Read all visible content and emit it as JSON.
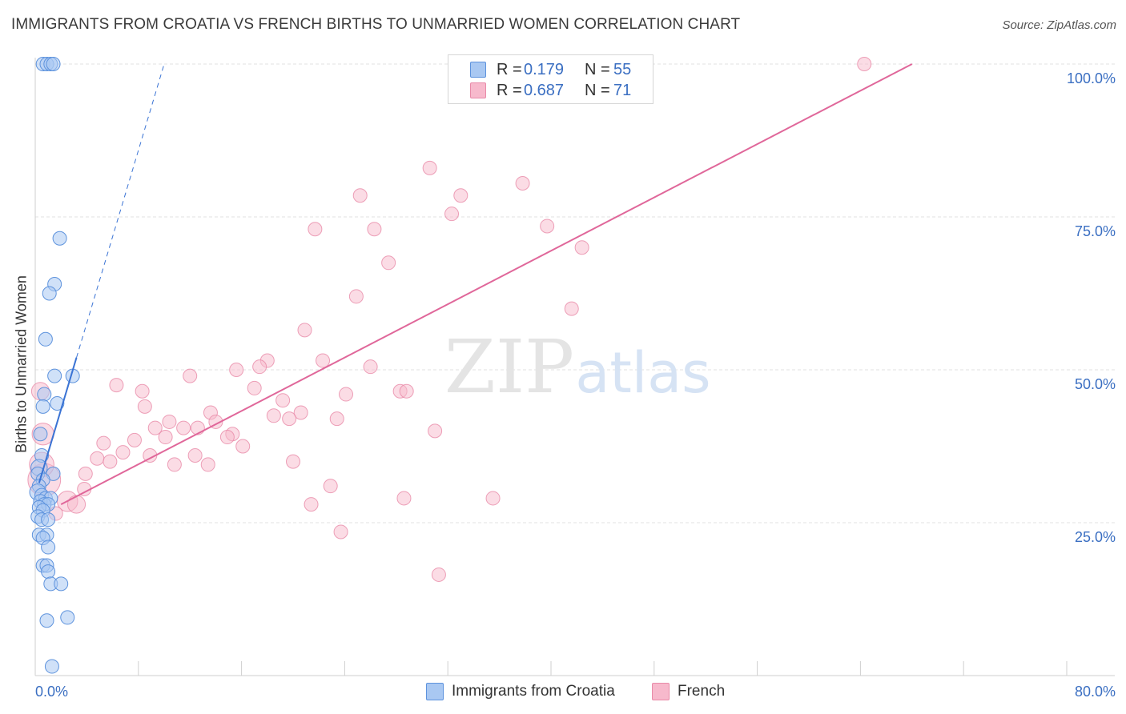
{
  "header": {
    "title": "IMMIGRANTS FROM CROATIA VS FRENCH BIRTHS TO UNMARRIED WOMEN CORRELATION CHART",
    "source": "Source: ZipAtlas.com"
  },
  "watermark": {
    "zip": "ZIP",
    "atlas": "atlas"
  },
  "legend": {
    "r_label": "R =",
    "n_label": "N =",
    "series": [
      {
        "name": "Immigrants from Croatia",
        "r": "0.179",
        "n": "55"
      },
      {
        "name": "French",
        "r": "0.687",
        "n": "71"
      }
    ]
  },
  "chart_data": {
    "type": "scatter",
    "title": "IMMIGRANTS FROM CROATIA VS FRENCH BIRTHS TO UNMARRIED WOMEN CORRELATION CHART",
    "xlabel": "",
    "ylabel": "Births to Unmarried Women",
    "xlim": [
      0,
      80
    ],
    "ylim": [
      0,
      100
    ],
    "x_tick_labels": [
      "0.0%",
      "80.0%"
    ],
    "y_tick_labels": [
      "25.0%",
      "50.0%",
      "75.0%",
      "100.0%"
    ],
    "y_ticks": [
      25,
      50,
      75,
      100
    ],
    "grid": true,
    "colors": {
      "croatia_fill": "#a9c8f2",
      "croatia_stroke": "#5e93dd",
      "croatia_line": "#3a73d4",
      "french_fill": "#f7b9cc",
      "french_stroke": "#e88aa8",
      "french_line": "#e0679a",
      "accent_text": "#3b6fc2"
    },
    "series": [
      {
        "name": "Immigrants from Croatia",
        "trend": {
          "x": [
            0.3,
            3.2
          ],
          "y": [
            31.5,
            52.0
          ],
          "dashed_to": [
            10.0,
            100.0
          ]
        },
        "points": [
          {
            "x": 0.6,
            "y": 100,
            "s": 1
          },
          {
            "x": 0.9,
            "y": 100,
            "s": 1
          },
          {
            "x": 1.2,
            "y": 100,
            "s": 1
          },
          {
            "x": 1.4,
            "y": 100,
            "s": 1
          },
          {
            "x": 1.9,
            "y": 71.5,
            "s": 1
          },
          {
            "x": 1.5,
            "y": 64.0,
            "s": 1
          },
          {
            "x": 1.1,
            "y": 62.5,
            "s": 1
          },
          {
            "x": 0.8,
            "y": 55.0,
            "s": 1
          },
          {
            "x": 1.5,
            "y": 49.0,
            "s": 1
          },
          {
            "x": 2.9,
            "y": 49.0,
            "s": 1
          },
          {
            "x": 0.7,
            "y": 46.0,
            "s": 1
          },
          {
            "x": 0.6,
            "y": 44.0,
            "s": 1
          },
          {
            "x": 1.7,
            "y": 44.5,
            "s": 1
          },
          {
            "x": 0.4,
            "y": 39.5,
            "s": 1
          },
          {
            "x": 0.5,
            "y": 36.0,
            "s": 1
          },
          {
            "x": 0.3,
            "y": 34.0,
            "s": 1.2
          },
          {
            "x": 0.2,
            "y": 33.0,
            "s": 1
          },
          {
            "x": 1.4,
            "y": 33.0,
            "s": 1
          },
          {
            "x": 0.6,
            "y": 32.0,
            "s": 1
          },
          {
            "x": 0.3,
            "y": 31.0,
            "s": 1
          },
          {
            "x": 0.2,
            "y": 30.0,
            "s": 1.2
          },
          {
            "x": 0.5,
            "y": 29.5,
            "s": 1
          },
          {
            "x": 0.8,
            "y": 29.0,
            "s": 1
          },
          {
            "x": 1.2,
            "y": 29.0,
            "s": 1
          },
          {
            "x": 0.4,
            "y": 28.5,
            "s": 1
          },
          {
            "x": 0.7,
            "y": 28.0,
            "s": 1
          },
          {
            "x": 1.0,
            "y": 28.0,
            "s": 1
          },
          {
            "x": 0.3,
            "y": 27.5,
            "s": 1
          },
          {
            "x": 0.6,
            "y": 27.0,
            "s": 1
          },
          {
            "x": 0.2,
            "y": 26.0,
            "s": 1
          },
          {
            "x": 0.5,
            "y": 25.5,
            "s": 1
          },
          {
            "x": 1.0,
            "y": 25.5,
            "s": 1
          },
          {
            "x": 0.3,
            "y": 23.0,
            "s": 1
          },
          {
            "x": 0.9,
            "y": 23.0,
            "s": 1
          },
          {
            "x": 0.6,
            "y": 22.5,
            "s": 1
          },
          {
            "x": 1.0,
            "y": 21.0,
            "s": 1
          },
          {
            "x": 0.6,
            "y": 18.0,
            "s": 1
          },
          {
            "x": 0.9,
            "y": 18.0,
            "s": 1
          },
          {
            "x": 1.0,
            "y": 17.0,
            "s": 1
          },
          {
            "x": 1.2,
            "y": 15.0,
            "s": 1
          },
          {
            "x": 2.0,
            "y": 15.0,
            "s": 1
          },
          {
            "x": 0.9,
            "y": 9.0,
            "s": 1
          },
          {
            "x": 2.5,
            "y": 9.5,
            "s": 1
          },
          {
            "x": 1.3,
            "y": 1.5,
            "s": 1
          }
        ]
      },
      {
        "name": "French",
        "trend": {
          "x": [
            2.0,
            68.0
          ],
          "y": [
            28.0,
            100.0
          ]
        },
        "points": [
          {
            "x": 64.3,
            "y": 100,
            "s": 1
          },
          {
            "x": 30.6,
            "y": 83.0,
            "s": 1
          },
          {
            "x": 37.8,
            "y": 80.5,
            "s": 1
          },
          {
            "x": 25.2,
            "y": 78.5,
            "s": 1
          },
          {
            "x": 33.0,
            "y": 78.5,
            "s": 1
          },
          {
            "x": 32.3,
            "y": 75.5,
            "s": 1
          },
          {
            "x": 21.7,
            "y": 73.0,
            "s": 1
          },
          {
            "x": 26.3,
            "y": 73.0,
            "s": 1
          },
          {
            "x": 39.7,
            "y": 73.5,
            "s": 1
          },
          {
            "x": 42.4,
            "y": 70.0,
            "s": 1
          },
          {
            "x": 27.4,
            "y": 67.5,
            "s": 1
          },
          {
            "x": 41.6,
            "y": 60.0,
            "s": 1
          },
          {
            "x": 24.9,
            "y": 62.0,
            "s": 1
          },
          {
            "x": 20.9,
            "y": 56.5,
            "s": 1
          },
          {
            "x": 18.0,
            "y": 51.5,
            "s": 1
          },
          {
            "x": 17.4,
            "y": 50.5,
            "s": 1
          },
          {
            "x": 22.3,
            "y": 51.5,
            "s": 1
          },
          {
            "x": 26.0,
            "y": 50.5,
            "s": 1
          },
          {
            "x": 15.6,
            "y": 50.0,
            "s": 1
          },
          {
            "x": 12.0,
            "y": 49.0,
            "s": 1
          },
          {
            "x": 6.3,
            "y": 47.5,
            "s": 1
          },
          {
            "x": 8.3,
            "y": 46.5,
            "s": 1
          },
          {
            "x": 17.0,
            "y": 47.0,
            "s": 1
          },
          {
            "x": 28.3,
            "y": 46.5,
            "s": 1
          },
          {
            "x": 28.8,
            "y": 46.5,
            "s": 1
          },
          {
            "x": 24.1,
            "y": 46.0,
            "s": 1
          },
          {
            "x": 19.2,
            "y": 45.0,
            "s": 1
          },
          {
            "x": 8.5,
            "y": 44.0,
            "s": 1
          },
          {
            "x": 13.6,
            "y": 43.0,
            "s": 1
          },
          {
            "x": 18.5,
            "y": 42.5,
            "s": 1
          },
          {
            "x": 20.6,
            "y": 43.0,
            "s": 1
          },
          {
            "x": 19.7,
            "y": 42.0,
            "s": 1
          },
          {
            "x": 23.4,
            "y": 42.0,
            "s": 1
          },
          {
            "x": 10.4,
            "y": 41.5,
            "s": 1
          },
          {
            "x": 14.0,
            "y": 41.5,
            "s": 1
          },
          {
            "x": 9.3,
            "y": 40.5,
            "s": 1
          },
          {
            "x": 11.5,
            "y": 40.5,
            "s": 1
          },
          {
            "x": 12.6,
            "y": 40.5,
            "s": 1
          },
          {
            "x": 31.0,
            "y": 40.0,
            "s": 1
          },
          {
            "x": 10.1,
            "y": 39.0,
            "s": 1
          },
          {
            "x": 15.3,
            "y": 39.5,
            "s": 1
          },
          {
            "x": 14.9,
            "y": 39.0,
            "s": 1
          },
          {
            "x": 7.7,
            "y": 38.5,
            "s": 1
          },
          {
            "x": 5.3,
            "y": 38.0,
            "s": 1
          },
          {
            "x": 16.1,
            "y": 37.5,
            "s": 1
          },
          {
            "x": 6.8,
            "y": 36.5,
            "s": 1
          },
          {
            "x": 8.9,
            "y": 36.0,
            "s": 1
          },
          {
            "x": 12.4,
            "y": 36.0,
            "s": 1
          },
          {
            "x": 4.8,
            "y": 35.5,
            "s": 1
          },
          {
            "x": 5.8,
            "y": 35.0,
            "s": 1
          },
          {
            "x": 10.8,
            "y": 34.5,
            "s": 1
          },
          {
            "x": 13.4,
            "y": 34.5,
            "s": 1
          },
          {
            "x": 20.0,
            "y": 35.0,
            "s": 1
          },
          {
            "x": 3.9,
            "y": 33.0,
            "s": 1
          },
          {
            "x": 22.9,
            "y": 31.0,
            "s": 1
          },
          {
            "x": 3.8,
            "y": 30.5,
            "s": 1
          },
          {
            "x": 0.7,
            "y": 32.0,
            "s": 2.4
          },
          {
            "x": 0.5,
            "y": 34.5,
            "s": 1.8
          },
          {
            "x": 0.6,
            "y": 39.5,
            "s": 1.6
          },
          {
            "x": 0.4,
            "y": 46.5,
            "s": 1.3
          },
          {
            "x": 2.5,
            "y": 28.5,
            "s": 1.5
          },
          {
            "x": 3.2,
            "y": 28.0,
            "s": 1.3
          },
          {
            "x": 28.6,
            "y": 29.0,
            "s": 1
          },
          {
            "x": 35.5,
            "y": 29.0,
            "s": 1
          },
          {
            "x": 21.4,
            "y": 28.0,
            "s": 1
          },
          {
            "x": 23.7,
            "y": 23.5,
            "s": 1
          },
          {
            "x": 31.3,
            "y": 16.5,
            "s": 1
          },
          {
            "x": 1.6,
            "y": 26.5,
            "s": 1
          }
        ]
      }
    ]
  }
}
